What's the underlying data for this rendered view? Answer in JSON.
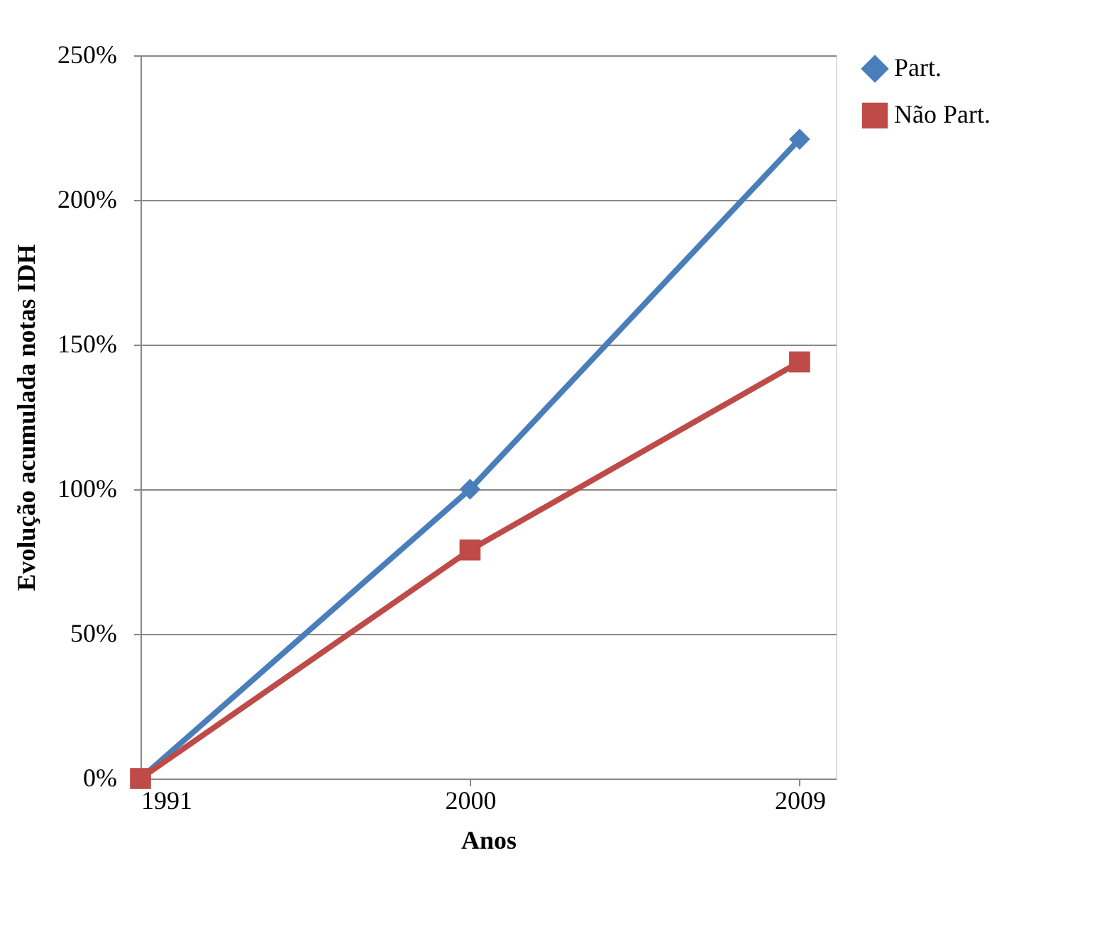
{
  "chart_data": {
    "type": "line",
    "xlabel": "Anos",
    "ylabel": "Evolução acumulada notas IDH",
    "categories": [
      "1991",
      "2000",
      "2009"
    ],
    "series": [
      {
        "name": "Part.",
        "color": "#4a7ebb",
        "marker": "diamond",
        "values": [
          0,
          100,
          221
        ]
      },
      {
        "name": "Não Part.",
        "color": "#be4b48",
        "marker": "square",
        "values": [
          0,
          79,
          144
        ]
      }
    ],
    "ylim": [
      0,
      250
    ],
    "yticks": [
      {
        "value": 0,
        "label": "0%"
      },
      {
        "value": 50,
        "label": "50%"
      },
      {
        "value": 100,
        "label": "100%"
      },
      {
        "value": 150,
        "label": "150%"
      },
      {
        "value": 200,
        "label": "200%"
      },
      {
        "value": 250,
        "label": "250%"
      }
    ],
    "grid": "y",
    "legend": "right"
  }
}
